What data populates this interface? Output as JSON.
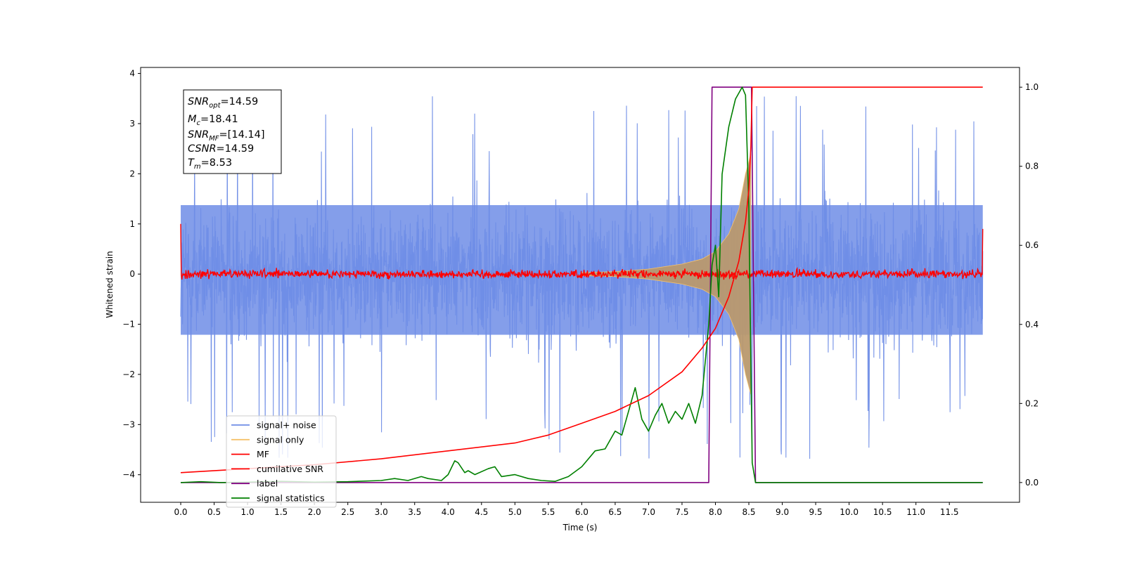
{
  "chart_data": {
    "type": "line",
    "xlabel": "Time (s)",
    "ylabel": "Whitened strain",
    "xlim": [
      -0.6,
      12.55
    ],
    "ylim": [
      -4.55,
      4.12
    ],
    "y2lim": [
      -0.05,
      1.05
    ],
    "x_ticks": [
      "0.0",
      "0.5",
      "1.0",
      "1.5",
      "2.0",
      "2.5",
      "3.0",
      "3.5",
      "4.0",
      "4.5",
      "5.0",
      "5.5",
      "6.0",
      "6.5",
      "7.0",
      "7.5",
      "8.0",
      "8.5",
      "9.0",
      "9.5",
      "10.0",
      "10.5",
      "11.0",
      "11.5"
    ],
    "y_ticks": [
      "4",
      "3",
      "2",
      "1",
      "0",
      "−1",
      "−2",
      "−3",
      "−4"
    ],
    "y2_ticks": [
      "1.0",
      "0.8",
      "0.6",
      "0.4",
      "0.2",
      "0.0"
    ],
    "grid": false,
    "legend_placement": "lower-left",
    "info_box": {
      "snr_opt": {
        "base": "SNR",
        "sub": "opt",
        "value": "=14.59"
      },
      "mc": {
        "base": "M",
        "sub": "c",
        "value": "=18.41"
      },
      "snr_mf": {
        "base": "SNR",
        "sub": "MF",
        "value": "=[14.14]"
      },
      "csnr": {
        "base": "CSNR",
        "sub": "",
        "value": "=14.59"
      },
      "tm": {
        "base": "T",
        "sub": "m",
        "value": "=8.53"
      }
    },
    "series": [
      {
        "name": "signal+ noise",
        "color": "#6f8de6",
        "axis": "left",
        "description_values": {
          "x_range": [
            0.0,
            12.0
          ],
          "typical_amplitude": [
            -2.2,
            2.5
          ],
          "peak_max": 3.75,
          "peak_min": -4.1
        }
      },
      {
        "name": "signal only",
        "color": "#f5c26b",
        "axis": "left",
        "x": [
          6.0,
          6.5,
          7.0,
          7.5,
          7.8,
          8.0,
          8.2,
          8.35,
          8.45,
          8.53
        ],
        "envelope": [
          0.03,
          0.05,
          0.1,
          0.2,
          0.3,
          0.45,
          0.8,
          1.3,
          2.0,
          2.4
        ]
      },
      {
        "name": "MF",
        "color": "#ff0000",
        "axis": "left",
        "x_range": [
          0.0,
          12.0
        ],
        "level": 0.0,
        "noise_amplitude": 0.1
      },
      {
        "name": "cumilative SNR",
        "color": "#ff0000",
        "axis": "right",
        "x": [
          0.0,
          1.0,
          2.0,
          3.0,
          4.0,
          5.0,
          5.5,
          6.0,
          6.5,
          7.0,
          7.5,
          7.8,
          8.0,
          8.2,
          8.35,
          8.45,
          8.5,
          8.53,
          8.55,
          12.0
        ],
        "values": [
          0.025,
          0.035,
          0.045,
          0.06,
          0.08,
          0.1,
          0.12,
          0.15,
          0.18,
          0.22,
          0.28,
          0.34,
          0.39,
          0.47,
          0.56,
          0.66,
          0.74,
          0.85,
          1.0,
          1.0
        ]
      },
      {
        "name": "label",
        "color": "#800080",
        "axis": "right",
        "x": [
          0.0,
          7.9,
          7.95,
          8.54,
          8.6,
          12.0
        ],
        "values": [
          0.0,
          0.0,
          1.0,
          1.0,
          0.0,
          0.0
        ]
      },
      {
        "name": "signal statistics",
        "color": "#008000",
        "axis": "right",
        "x": [
          0.0,
          0.3,
          0.6,
          1.0,
          1.5,
          2.0,
          2.5,
          3.0,
          3.2,
          3.4,
          3.6,
          3.7,
          3.9,
          4.0,
          4.1,
          4.15,
          4.25,
          4.3,
          4.4,
          4.6,
          4.7,
          4.8,
          5.0,
          5.2,
          5.4,
          5.6,
          5.8,
          6.0,
          6.2,
          6.35,
          6.5,
          6.6,
          6.7,
          6.8,
          6.9,
          7.0,
          7.1,
          7.2,
          7.3,
          7.4,
          7.5,
          7.6,
          7.7,
          7.8,
          7.9,
          7.95,
          8.0,
          8.05,
          8.1,
          8.2,
          8.3,
          8.4,
          8.45,
          8.5,
          8.55,
          8.6,
          12.0
        ],
        "values": [
          0.0,
          0.002,
          0.0,
          0.001,
          0.003,
          0.001,
          0.002,
          0.005,
          0.01,
          0.005,
          0.015,
          0.01,
          0.005,
          0.02,
          0.055,
          0.05,
          0.025,
          0.03,
          0.02,
          0.035,
          0.04,
          0.015,
          0.02,
          0.01,
          0.005,
          0.003,
          0.015,
          0.04,
          0.08,
          0.085,
          0.13,
          0.12,
          0.18,
          0.24,
          0.16,
          0.13,
          0.17,
          0.2,
          0.15,
          0.18,
          0.16,
          0.2,
          0.15,
          0.22,
          0.4,
          0.55,
          0.6,
          0.47,
          0.78,
          0.9,
          0.97,
          1.0,
          0.98,
          0.7,
          0.05,
          0.0,
          0.0
        ]
      }
    ]
  }
}
